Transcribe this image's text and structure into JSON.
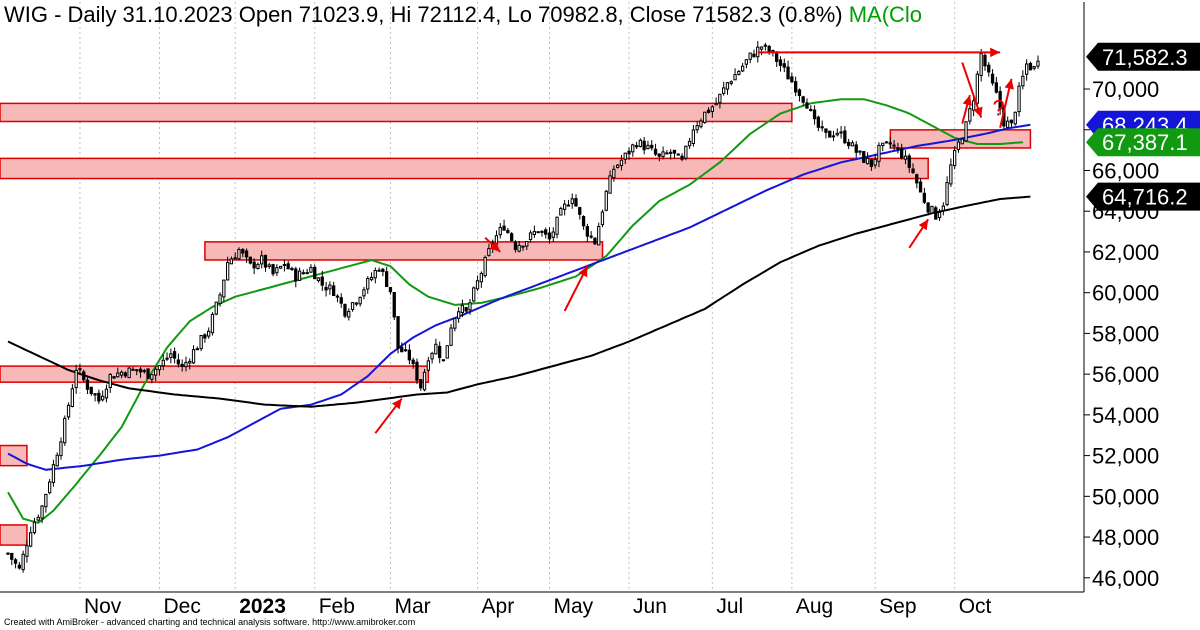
{
  "header": {
    "text": "WIG - Daily 31.10.2023 Open 71023.9, Hi 72112.4, Lo 70982.8, Close 71582.3 (0.8%)",
    "ma_text": "MA(Clo"
  },
  "footer": {
    "text": "Created with AmiBroker - advanced charting and technical analysis software. http://www.amibroker.com"
  },
  "colors": {
    "candle": "#000000",
    "ma_green": "#119911",
    "ma_blue": "#1515d8",
    "ma_black": "#000000",
    "zone_fill": "#f7b8b8",
    "zone_stroke": "#dd0000",
    "arrow": "#ee0000",
    "tag_black": "#000000",
    "tag_blue": "#1515d8",
    "tag_green": "#119911"
  },
  "chart_data": {
    "type": "candlestick",
    "title": "WIG - Daily",
    "ylim": [
      45400,
      72800
    ],
    "y_ticks": [
      {
        "value": 46000,
        "label": "46,000"
      },
      {
        "value": 48000,
        "label": "48,000"
      },
      {
        "value": 50000,
        "label": "50,000"
      },
      {
        "value": 52000,
        "label": "52,000"
      },
      {
        "value": 54000,
        "label": "54,000"
      },
      {
        "value": 56000,
        "label": "56,000"
      },
      {
        "value": 58000,
        "label": "58,000"
      },
      {
        "value": 60000,
        "label": "60,000"
      },
      {
        "value": 62000,
        "label": "62,000"
      },
      {
        "value": 64000,
        "label": "64,000"
      },
      {
        "value": 66000,
        "label": "66,000"
      },
      {
        "value": 68000,
        "label": "68,000"
      },
      {
        "value": 70000,
        "label": "70,000"
      }
    ],
    "x_months": [
      {
        "label": "Nov",
        "day": 19,
        "bold": false
      },
      {
        "label": "Dec",
        "day": 40,
        "bold": false
      },
      {
        "label": "2023",
        "day": 60,
        "bold": true
      },
      {
        "label": "Feb",
        "day": 81,
        "bold": false
      },
      {
        "label": "Mar",
        "day": 101,
        "bold": false
      },
      {
        "label": "Apr",
        "day": 124,
        "bold": false
      },
      {
        "label": "May",
        "day": 143,
        "bold": false
      },
      {
        "label": "Jun",
        "day": 164,
        "bold": false
      },
      {
        "label": "Jul",
        "day": 186,
        "bold": false
      },
      {
        "label": "Aug",
        "day": 207,
        "bold": false
      },
      {
        "label": "Sep",
        "day": 229,
        "bold": false
      },
      {
        "label": "Oct",
        "day": 250,
        "bold": false
      }
    ],
    "last_day": 272,
    "price_keypoints": [
      [
        0,
        47200
      ],
      [
        3,
        46400
      ],
      [
        6,
        48400
      ],
      [
        9,
        49500
      ],
      [
        12,
        51500
      ],
      [
        15,
        53600
      ],
      [
        18,
        56300
      ],
      [
        21,
        55400
      ],
      [
        24,
        54700
      ],
      [
        27,
        55900
      ],
      [
        30,
        56100
      ],
      [
        34,
        56200
      ],
      [
        37,
        56000
      ],
      [
        40,
        56400
      ],
      [
        43,
        57000
      ],
      [
        46,
        56300
      ],
      [
        50,
        57400
      ],
      [
        53,
        58200
      ],
      [
        56,
        59900
      ],
      [
        58,
        61500
      ],
      [
        61,
        62100
      ],
      [
        64,
        61300
      ],
      [
        67,
        61600
      ],
      [
        70,
        60900
      ],
      [
        73,
        61400
      ],
      [
        76,
        60800
      ],
      [
        80,
        61200
      ],
      [
        83,
        60400
      ],
      [
        86,
        60100
      ],
      [
        89,
        59100
      ],
      [
        92,
        59700
      ],
      [
        95,
        60500
      ],
      [
        98,
        61300
      ],
      [
        101,
        60100
      ],
      [
        103,
        57300
      ],
      [
        106,
        56800
      ],
      [
        109,
        55400
      ],
      [
        111,
        56900
      ],
      [
        113,
        57400
      ],
      [
        115,
        56600
      ],
      [
        117,
        58400
      ],
      [
        119,
        59300
      ],
      [
        121,
        59000
      ],
      [
        124,
        60500
      ],
      [
        126,
        61500
      ],
      [
        128,
        62500
      ],
      [
        131,
        63300
      ],
      [
        134,
        62300
      ],
      [
        137,
        62600
      ],
      [
        140,
        63100
      ],
      [
        143,
        62600
      ],
      [
        146,
        63900
      ],
      [
        149,
        64800
      ],
      [
        152,
        63200
      ],
      [
        155,
        62500
      ],
      [
        158,
        64900
      ],
      [
        160,
        66100
      ],
      [
        163,
        66700
      ],
      [
        166,
        67400
      ],
      [
        169,
        67100
      ],
      [
        172,
        66600
      ],
      [
        175,
        66900
      ],
      [
        178,
        66400
      ],
      [
        181,
        68100
      ],
      [
        184,
        68800
      ],
      [
        187,
        69300
      ],
      [
        190,
        70300
      ],
      [
        193,
        70900
      ],
      [
        196,
        71600
      ],
      [
        199,
        72100
      ],
      [
        202,
        71700
      ],
      [
        205,
        70900
      ],
      [
        208,
        70100
      ],
      [
        211,
        69300
      ],
      [
        213,
        68300
      ],
      [
        216,
        67700
      ],
      [
        219,
        67900
      ],
      [
        222,
        67400
      ],
      [
        225,
        66700
      ],
      [
        228,
        66300
      ],
      [
        230,
        67000
      ],
      [
        233,
        67300
      ],
      [
        236,
        66800
      ],
      [
        239,
        65900
      ],
      [
        241,
        64900
      ],
      [
        243,
        64200
      ],
      [
        245,
        63800
      ],
      [
        247,
        64400
      ],
      [
        249,
        66200
      ],
      [
        251,
        67300
      ],
      [
        253,
        68200
      ],
      [
        255,
        69600
      ],
      [
        257,
        71700
      ],
      [
        259,
        70600
      ],
      [
        261,
        69700
      ],
      [
        263,
        68400
      ],
      [
        265,
        68200
      ],
      [
        267,
        69900
      ],
      [
        269,
        71200
      ],
      [
        271,
        71000
      ],
      [
        272,
        71582
      ]
    ],
    "series": [
      {
        "key": "ma_green",
        "color": "#119911",
        "points": [
          [
            0,
            50200
          ],
          [
            4,
            48900
          ],
          [
            8,
            48700
          ],
          [
            12,
            49300
          ],
          [
            18,
            50600
          ],
          [
            25,
            52200
          ],
          [
            30,
            53400
          ],
          [
            36,
            55500
          ],
          [
            42,
            57300
          ],
          [
            48,
            58600
          ],
          [
            54,
            59300
          ],
          [
            60,
            59800
          ],
          [
            70,
            60300
          ],
          [
            80,
            60800
          ],
          [
            90,
            61300
          ],
          [
            96,
            61600
          ],
          [
            101,
            61300
          ],
          [
            106,
            60400
          ],
          [
            111,
            59800
          ],
          [
            118,
            59400
          ],
          [
            125,
            59500
          ],
          [
            132,
            59800
          ],
          [
            140,
            60200
          ],
          [
            150,
            60800
          ],
          [
            158,
            61800
          ],
          [
            165,
            63300
          ],
          [
            172,
            64500
          ],
          [
            180,
            65300
          ],
          [
            188,
            66400
          ],
          [
            196,
            67800
          ],
          [
            204,
            68800
          ],
          [
            212,
            69300
          ],
          [
            220,
            69500
          ],
          [
            226,
            69500
          ],
          [
            232,
            69200
          ],
          [
            238,
            68800
          ],
          [
            244,
            68200
          ],
          [
            250,
            67600
          ],
          [
            256,
            67300
          ],
          [
            262,
            67300
          ],
          [
            268,
            67387
          ]
        ]
      },
      {
        "key": "ma_blue",
        "color": "#1515d8",
        "points": [
          [
            0,
            52100
          ],
          [
            5,
            51600
          ],
          [
            10,
            51300
          ],
          [
            20,
            51500
          ],
          [
            30,
            51800
          ],
          [
            40,
            52000
          ],
          [
            50,
            52300
          ],
          [
            58,
            52900
          ],
          [
            65,
            53600
          ],
          [
            72,
            54300
          ],
          [
            80,
            54500
          ],
          [
            88,
            55000
          ],
          [
            95,
            55900
          ],
          [
            101,
            57000
          ],
          [
            107,
            57800
          ],
          [
            113,
            58400
          ],
          [
            120,
            58900
          ],
          [
            130,
            59700
          ],
          [
            140,
            60400
          ],
          [
            150,
            61100
          ],
          [
            160,
            61800
          ],
          [
            170,
            62500
          ],
          [
            180,
            63200
          ],
          [
            190,
            64100
          ],
          [
            200,
            65000
          ],
          [
            210,
            65800
          ],
          [
            220,
            66400
          ],
          [
            230,
            66800
          ],
          [
            240,
            67200
          ],
          [
            250,
            67500
          ],
          [
            258,
            67800
          ],
          [
            265,
            68100
          ],
          [
            270,
            68243
          ]
        ]
      },
      {
        "key": "ma_black",
        "color": "#000000",
        "points": [
          [
            0,
            57600
          ],
          [
            8,
            56900
          ],
          [
            16,
            56200
          ],
          [
            24,
            55700
          ],
          [
            32,
            55300
          ],
          [
            44,
            55000
          ],
          [
            56,
            54800
          ],
          [
            68,
            54500
          ],
          [
            80,
            54400
          ],
          [
            92,
            54600
          ],
          [
            100,
            54800
          ],
          [
            108,
            55000
          ],
          [
            116,
            55100
          ],
          [
            124,
            55500
          ],
          [
            134,
            55900
          ],
          [
            144,
            56400
          ],
          [
            154,
            56900
          ],
          [
            164,
            57600
          ],
          [
            174,
            58400
          ],
          [
            184,
            59200
          ],
          [
            194,
            60400
          ],
          [
            204,
            61500
          ],
          [
            214,
            62300
          ],
          [
            224,
            62900
          ],
          [
            234,
            63400
          ],
          [
            244,
            63900
          ],
          [
            254,
            64300
          ],
          [
            262,
            64600
          ],
          [
            270,
            64716
          ]
        ]
      }
    ],
    "zones": [
      {
        "d0": -1,
        "d1": 5,
        "y0": 47900,
        "y1": 48300
      },
      {
        "d0": -1,
        "d1": 5,
        "y0": 51800,
        "y1": 52200
      },
      {
        "d0": -1,
        "d1": 111,
        "y0": 55900,
        "y1": 56100
      },
      {
        "d0": 52,
        "d1": 157,
        "y0": 61900,
        "y1": 62200
      },
      {
        "d0": -1,
        "d1": 243,
        "y0": 65900,
        "y1": 66300
      },
      {
        "d0": 233,
        "d1": 270,
        "y0": 67400,
        "y1": 67700
      },
      {
        "d0": -1,
        "d1": 207,
        "y0": 68700,
        "y1": 69000
      }
    ],
    "arrows": [
      {
        "from": [
          97,
          53100
        ],
        "to": [
          104,
          54800
        ],
        "head": true
      },
      {
        "from": [
          147,
          59100
        ],
        "to": [
          153,
          61300
        ],
        "head": true
      },
      {
        "from": [
          238,
          62200
        ],
        "to": [
          243,
          63600
        ],
        "head": true
      },
      {
        "from": [
          198,
          71800
        ],
        "to": [
          262,
          71800
        ],
        "head": true
      },
      {
        "from": [
          252,
          68300
        ],
        "to": [
          254,
          69700
        ],
        "head": true
      },
      {
        "from": [
          252,
          71300
        ],
        "to": [
          257,
          68600
        ],
        "head": true
      },
      {
        "from": [
          262,
          68100
        ],
        "to": [
          265,
          70500
        ],
        "head": true
      },
      {
        "from": [
          126,
          62700
        ],
        "to": [
          130,
          62000
        ],
        "head": true
      }
    ],
    "question_mark": {
      "text": "?",
      "day": 260,
      "value": 68700
    },
    "price_tags": [
      {
        "label": "71,582.3",
        "value": 71582,
        "color_key": "tag_black"
      },
      {
        "label": "68,243.4",
        "value": 68243,
        "color_key": "tag_blue"
      },
      {
        "label": "67,387.1",
        "value": 67387,
        "color_key": "tag_green"
      },
      {
        "label": "64,716.2",
        "value": 64716,
        "color_key": "tag_black"
      }
    ]
  }
}
